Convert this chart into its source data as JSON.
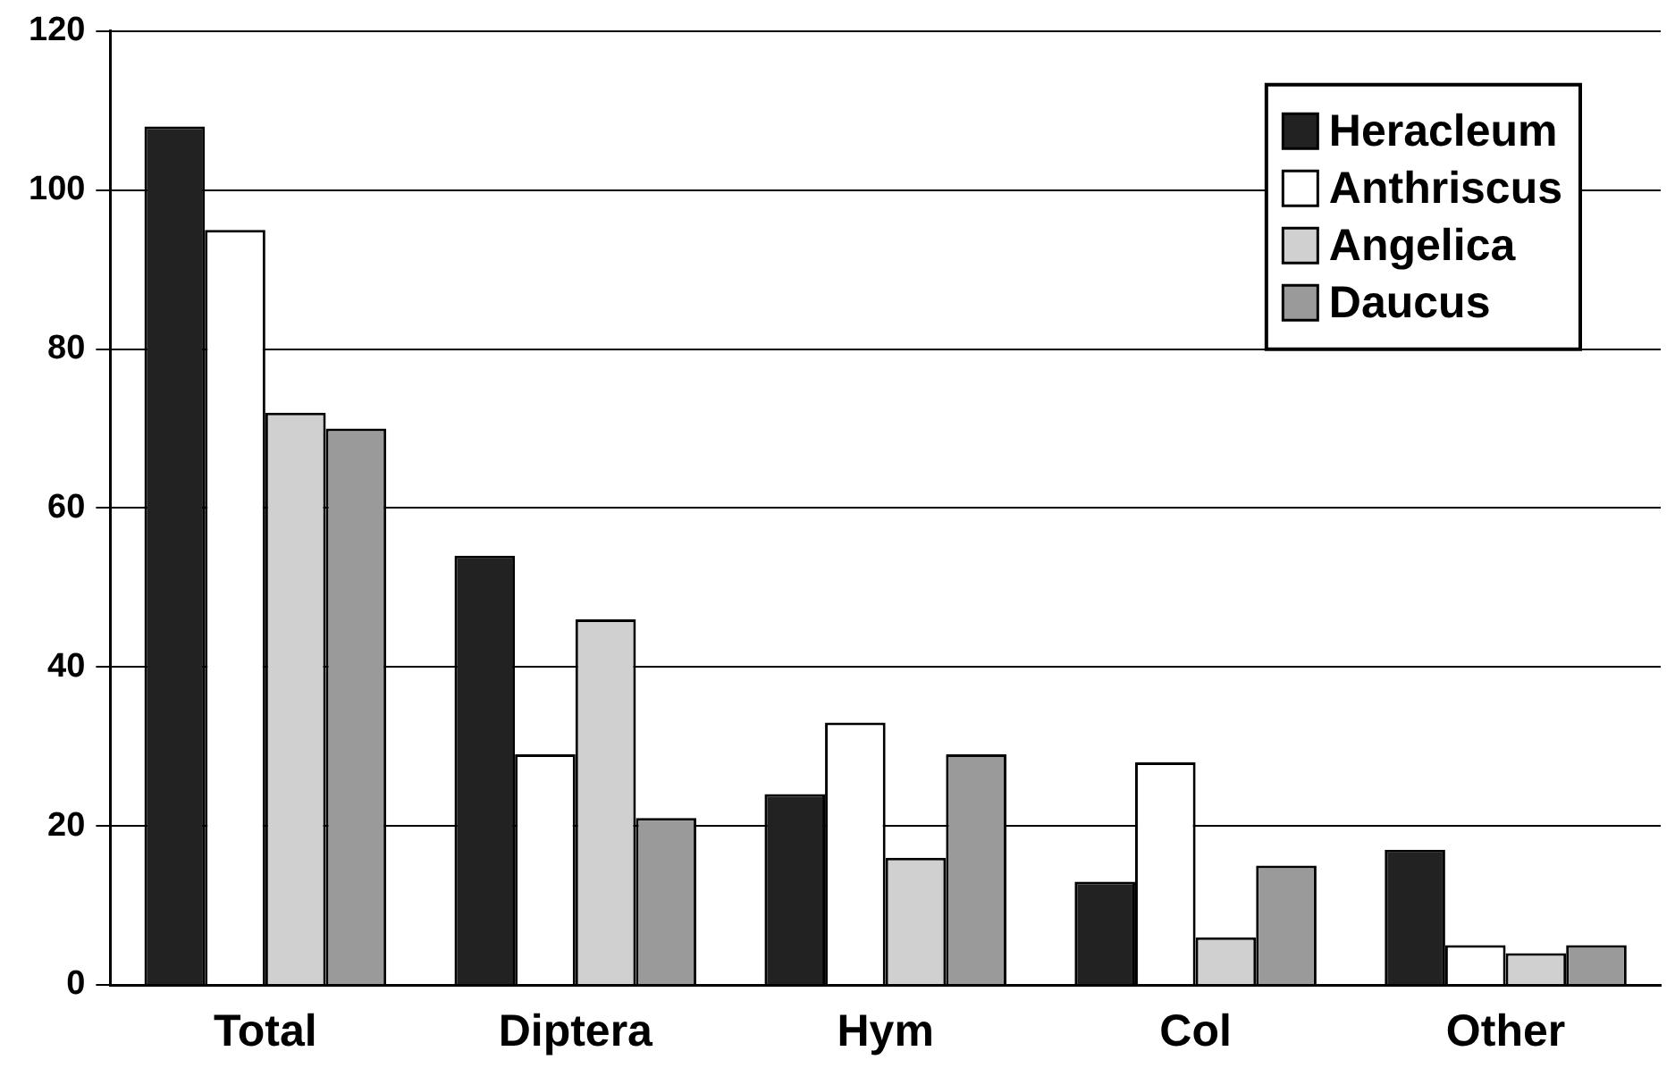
{
  "chart_data": {
    "type": "bar",
    "categories": [
      "Total",
      "Diptera",
      "Hym",
      "Col",
      "Other"
    ],
    "series": [
      {
        "name": "Heracleum",
        "color": "#222222",
        "values": [
          108,
          54,
          24,
          13,
          17
        ]
      },
      {
        "name": "Anthriscus",
        "color": "#ffffff",
        "values": [
          95,
          29,
          33,
          28,
          5
        ]
      },
      {
        "name": "Angelica",
        "color": "#d0d0d0",
        "values": [
          72,
          46,
          16,
          6,
          4
        ]
      },
      {
        "name": "Daucus",
        "color": "#9a9a9a",
        "values": [
          70,
          21,
          29,
          15,
          5
        ]
      }
    ],
    "ylim": [
      0,
      120
    ],
    "yticks": [
      0,
      20,
      40,
      60,
      80,
      100,
      120
    ],
    "grid": "y",
    "legend": "top right"
  }
}
